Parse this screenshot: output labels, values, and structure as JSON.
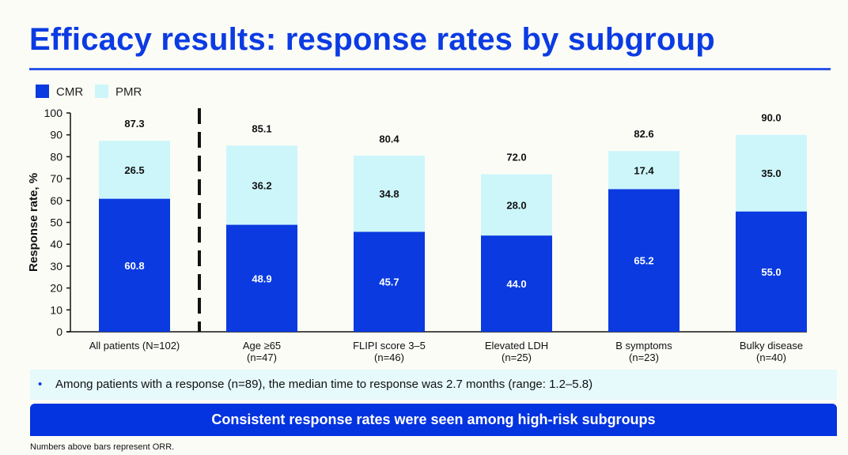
{
  "title": "Efficacy results: response rates by subgroup",
  "chart_data": {
    "type": "bar",
    "stacked": true,
    "title": "",
    "ylabel": "Response rate, %",
    "xlabel": "",
    "ylim": [
      0,
      100
    ],
    "yticks": [
      0,
      10,
      20,
      30,
      40,
      50,
      60,
      70,
      80,
      90,
      100
    ],
    "legend": {
      "placement": "top-left",
      "entries": [
        "CMR",
        "PMR"
      ]
    },
    "categories": [
      [
        "All patients (N=102)"
      ],
      [
        "Age ≥65",
        "(n=47)"
      ],
      [
        "FLIPI score 3–5",
        "(n=46)"
      ],
      [
        "Elevated LDH",
        "(n=25)"
      ],
      [
        "B symptoms",
        "(n=23)"
      ],
      [
        "Bulky disease",
        "(n=40)"
      ]
    ],
    "series": [
      {
        "name": "CMR",
        "color": "#0a3ae0",
        "values": [
          60.8,
          48.9,
          45.7,
          44.0,
          65.2,
          55.0
        ]
      },
      {
        "name": "PMR",
        "color": "#cdf6fb",
        "values": [
          26.5,
          36.2,
          34.8,
          28.0,
          17.4,
          35.0
        ]
      }
    ],
    "totals_label": "ORR",
    "totals": [
      87.3,
      85.1,
      80.4,
      72.0,
      82.6,
      90.0
    ],
    "divider_after_category": 0
  },
  "note": {
    "bullet": "•",
    "text": "Among patients with a response (n=89), the median time to response was 2.7 months (range: 1.2–5.8)"
  },
  "banner": "Consistent response rates were seen among high-risk subgroups",
  "footnote": "Numbers above bars represent ORR."
}
